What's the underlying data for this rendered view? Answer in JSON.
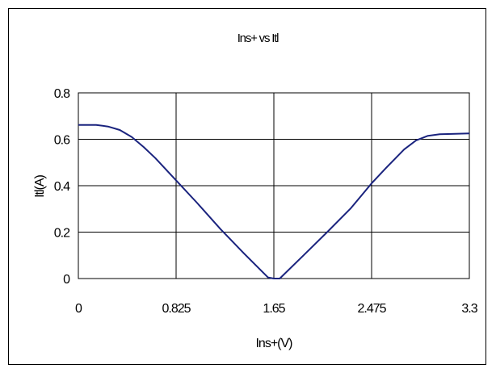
{
  "chart_data": {
    "type": "line",
    "title": "Ins+ vs Itl",
    "xlabel": "Ins+(V)",
    "ylabel": "Itl(A)",
    "xlim": [
      0,
      3.3
    ],
    "ylim": [
      0,
      0.8
    ],
    "x_ticks": [
      "0",
      "0.825",
      "1.65",
      "2.475",
      "3.3"
    ],
    "y_ticks": [
      "0",
      "0.2",
      "0.4",
      "0.6",
      "0.8"
    ],
    "grid": true,
    "legend": "none",
    "colors": {
      "line": "#1a237e",
      "grid": "#000000",
      "background": "#ffffff"
    },
    "series": [
      {
        "x": [
          0,
          0.15,
          0.25,
          0.35,
          0.45,
          0.55,
          0.65,
          0.825,
          1.0,
          1.2,
          1.4,
          1.6,
          1.65,
          1.7,
          1.9,
          2.1,
          2.3,
          2.475,
          2.6,
          2.75,
          2.85,
          2.95,
          3.05,
          3.15,
          3.3
        ],
        "y": [
          0.662,
          0.662,
          0.655,
          0.64,
          0.61,
          0.567,
          0.519,
          0.423,
          0.327,
          0.213,
          0.107,
          0.005,
          0.0,
          0.0,
          0.1,
          0.2,
          0.303,
          0.41,
          0.478,
          0.556,
          0.595,
          0.615,
          0.622,
          0.623,
          0.625
        ]
      }
    ]
  }
}
